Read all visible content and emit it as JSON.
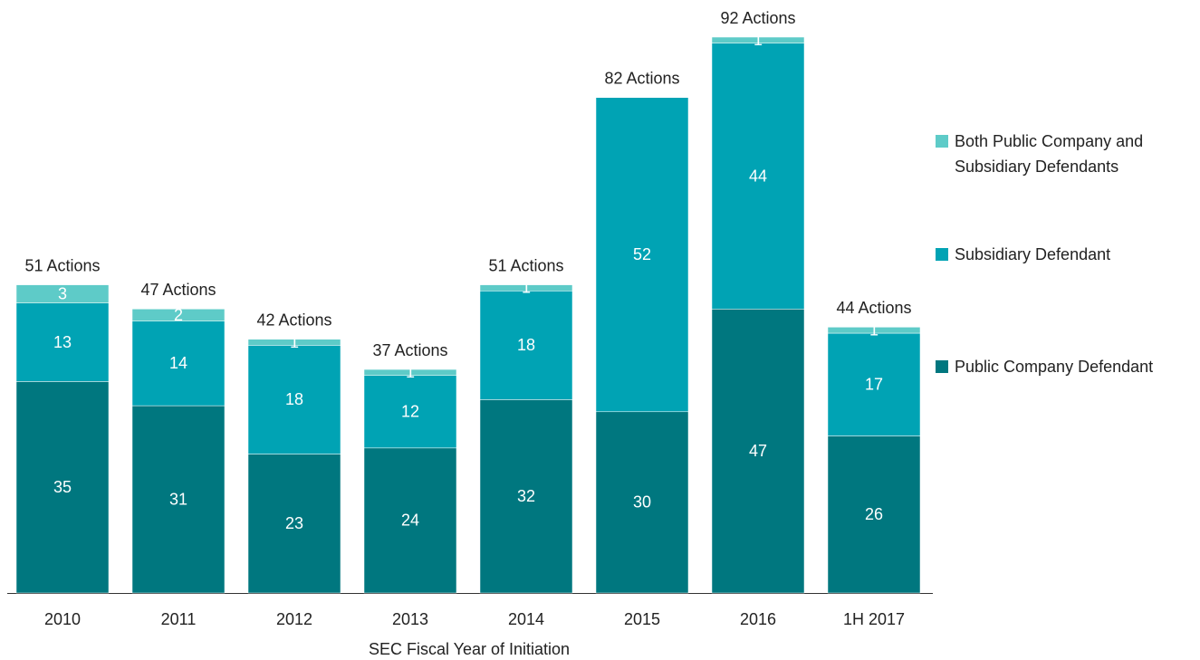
{
  "chart_data": {
    "type": "stacked_bar",
    "categories": [
      "2010",
      "2011",
      "2012",
      "2013",
      "2014",
      "2015",
      "2016",
      "1H 2017"
    ],
    "series": [
      {
        "name": "Public Company Defendant",
        "color": "#00777f",
        "values": [
          35,
          31,
          23,
          24,
          32,
          30,
          47,
          26
        ]
      },
      {
        "name": "Subsidiary Defendant",
        "color": "#00a3b4",
        "values": [
          13,
          14,
          18,
          12,
          18,
          52,
          44,
          17
        ]
      },
      {
        "name": "Both Public Company and Subsidiary Defendants",
        "color": "#5ecbc8",
        "values": [
          3,
          2,
          1,
          1,
          1,
          null,
          1,
          1
        ]
      }
    ],
    "total_labels": [
      "51 Actions",
      "47 Actions",
      "42 Actions",
      "37 Actions",
      "51 Actions",
      "82 Actions",
      "92 Actions",
      "44 Actions"
    ],
    "xlabel": "SEC Fiscal Year of Initiation"
  }
}
